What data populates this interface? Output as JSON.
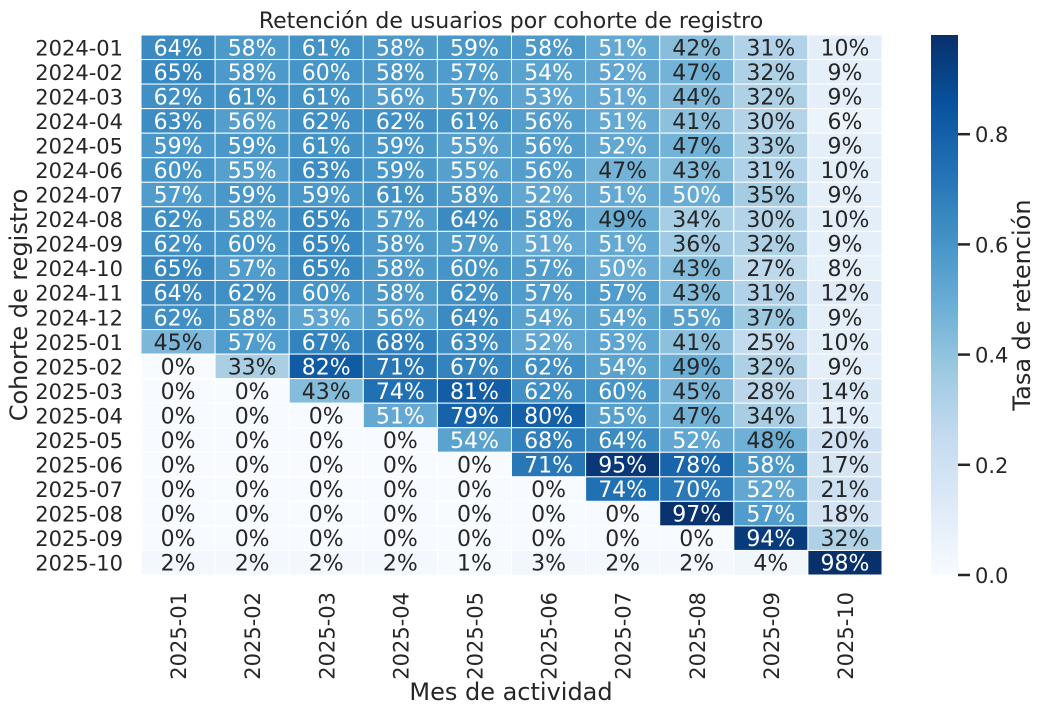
{
  "chart_data": {
    "type": "heatmap",
    "title": "Retención de usuarios por cohorte de registro",
    "xlabel": "Mes de actividad",
    "ylabel": "Cohorte de registro",
    "colorbar_label": "Tasa de retención",
    "colormap": "Blues",
    "vmin": 0.0,
    "vmax": 0.98,
    "colorbar_ticks": [
      "0.0",
      "0.2",
      "0.4",
      "0.6",
      "0.8"
    ],
    "colorbar_tick_values": [
      0.0,
      0.2,
      0.4,
      0.6,
      0.8
    ],
    "x_categories": [
      "2025-01",
      "2025-02",
      "2025-03",
      "2025-04",
      "2025-05",
      "2025-06",
      "2025-07",
      "2025-08",
      "2025-09",
      "2025-10"
    ],
    "y_categories": [
      "2024-01",
      "2024-02",
      "2024-03",
      "2024-04",
      "2024-05",
      "2024-06",
      "2024-07",
      "2024-08",
      "2024-09",
      "2024-10",
      "2024-11",
      "2024-12",
      "2025-01",
      "2025-02",
      "2025-03",
      "2025-04",
      "2025-05",
      "2025-06",
      "2025-07",
      "2025-08",
      "2025-09",
      "2025-10"
    ],
    "values": [
      [
        64,
        58,
        61,
        58,
        59,
        58,
        51,
        42,
        31,
        10
      ],
      [
        65,
        58,
        60,
        58,
        57,
        54,
        52,
        47,
        32,
        9
      ],
      [
        62,
        61,
        61,
        56,
        57,
        53,
        51,
        44,
        32,
        9
      ],
      [
        63,
        56,
        62,
        62,
        61,
        56,
        51,
        41,
        30,
        6
      ],
      [
        59,
        59,
        61,
        59,
        55,
        56,
        52,
        47,
        33,
        9
      ],
      [
        60,
        55,
        63,
        59,
        55,
        56,
        47,
        43,
        31,
        10
      ],
      [
        57,
        59,
        59,
        61,
        58,
        52,
        51,
        50,
        35,
        9
      ],
      [
        62,
        58,
        65,
        57,
        64,
        58,
        49,
        34,
        30,
        10
      ],
      [
        62,
        60,
        65,
        58,
        57,
        51,
        51,
        36,
        32,
        9
      ],
      [
        65,
        57,
        65,
        58,
        60,
        57,
        50,
        43,
        27,
        8
      ],
      [
        64,
        62,
        60,
        58,
        62,
        57,
        57,
        43,
        31,
        12
      ],
      [
        62,
        58,
        53,
        56,
        64,
        54,
        54,
        55,
        37,
        9
      ],
      [
        45,
        57,
        67,
        68,
        63,
        52,
        53,
        41,
        25,
        10
      ],
      [
        0,
        33,
        82,
        71,
        67,
        62,
        54,
        49,
        32,
        9
      ],
      [
        0,
        0,
        43,
        74,
        81,
        62,
        60,
        45,
        28,
        14
      ],
      [
        0,
        0,
        0,
        51,
        79,
        80,
        55,
        47,
        34,
        11
      ],
      [
        0,
        0,
        0,
        0,
        54,
        68,
        64,
        52,
        48,
        20
      ],
      [
        0,
        0,
        0,
        0,
        0,
        71,
        95,
        78,
        58,
        17
      ],
      [
        0,
        0,
        0,
        0,
        0,
        0,
        74,
        70,
        52,
        21
      ],
      [
        0,
        0,
        0,
        0,
        0,
        0,
        0,
        97,
        57,
        18
      ],
      [
        0,
        0,
        0,
        0,
        0,
        0,
        0,
        0,
        94,
        32
      ],
      [
        2,
        2,
        2,
        2,
        1,
        3,
        2,
        2,
        4,
        98
      ]
    ],
    "value_format": "percent"
  }
}
